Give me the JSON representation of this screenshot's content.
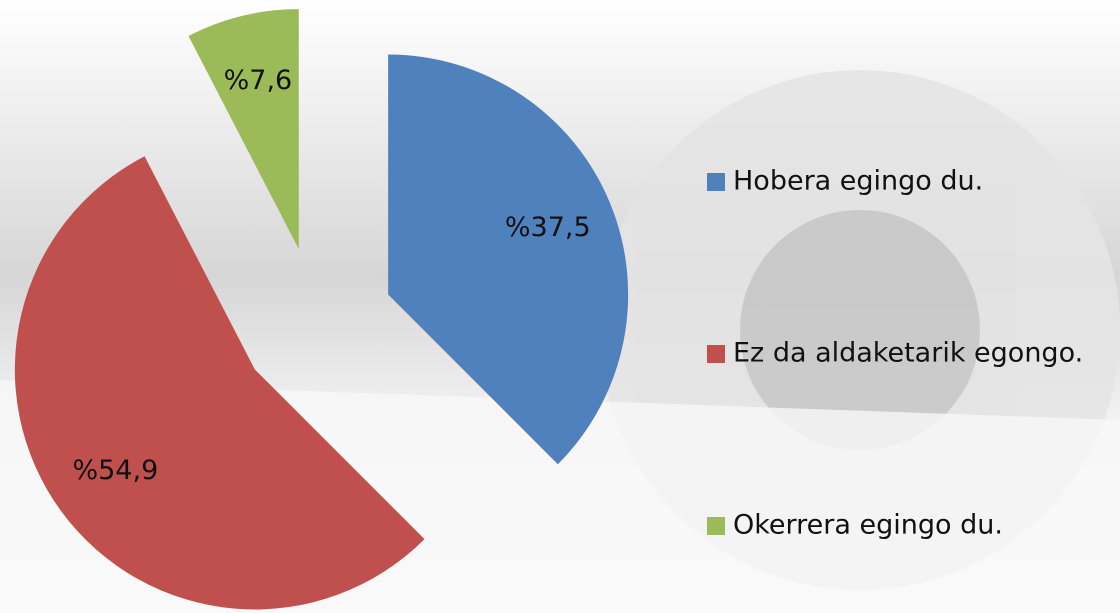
{
  "chart_data": {
    "type": "pie",
    "categories": [
      "Hobera egingo du.",
      "Ez da aldaketarik egongo.",
      "Okerrera egingo du."
    ],
    "values": [
      37.5,
      54.9,
      7.6
    ],
    "value_labels": [
      "%37,5",
      "%54,9",
      "%7,6"
    ],
    "colors": [
      "#4f81bd",
      "#c0504d",
      "#9bbb59"
    ],
    "legend": "right"
  }
}
